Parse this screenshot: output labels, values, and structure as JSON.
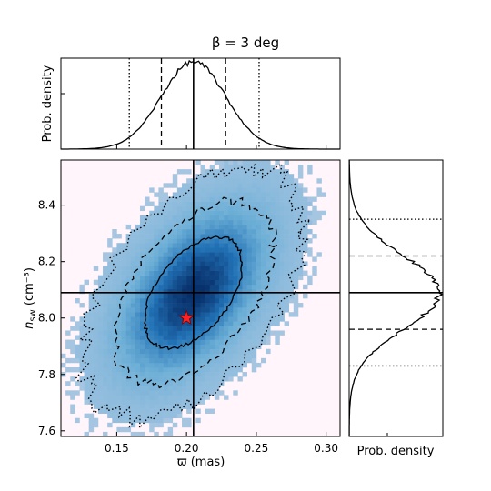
{
  "chart_data": {
    "type": "heatmap",
    "title": "β = 3 deg",
    "xlabel": "ϖ (mas)",
    "ylabel": "n_sw (cm⁻³)",
    "xlim": [
      0.11,
      0.31
    ],
    "ylim": [
      7.58,
      8.56
    ],
    "xticks": [
      0.15,
      0.2,
      0.25,
      0.3
    ],
    "xtick_labels": [
      "0.15",
      "0.20",
      "0.25",
      "0.30"
    ],
    "yticks": [
      7.6,
      7.8,
      8.0,
      8.2,
      8.4
    ],
    "ytick_labels": [
      "7.6",
      "7.8",
      "8.0",
      "8.2",
      "8.4"
    ],
    "distribution": {
      "center_x": 0.205,
      "center_y": 8.09,
      "sigma_x": 0.023,
      "sigma_y": 0.13,
      "correlation": 0.5
    },
    "truth_marker": {
      "x": 0.2,
      "y": 8.0,
      "marker": "star",
      "color": "#ff2222"
    },
    "median_lines": {
      "x": 0.205,
      "y": 8.09
    },
    "x_marginal": {
      "ylabel": "Prob. density",
      "dashed": [
        0.182,
        0.228
      ],
      "dotted": [
        0.159,
        0.252
      ]
    },
    "y_marginal": {
      "xlabel": "Prob. density",
      "dashed": [
        7.96,
        8.22
      ],
      "dotted": [
        7.83,
        8.35
      ]
    },
    "contours": [
      {
        "level": "1-sigma",
        "style": "solid"
      },
      {
        "level": "2-sigma",
        "style": "dashed"
      },
      {
        "level": "3-sigma",
        "style": "dotted"
      }
    ],
    "colors": {
      "background": "#fff5fa",
      "low": "#a9c6e2",
      "high": "#08306b",
      "star": "#ff2222"
    }
  }
}
